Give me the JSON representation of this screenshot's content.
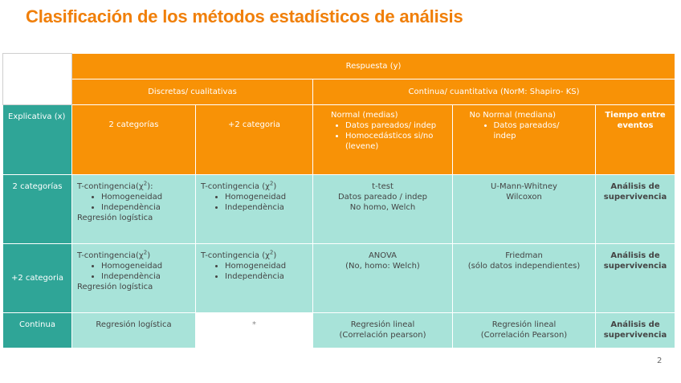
{
  "title": "Clasificación de los métodos estadísticos de análisis",
  "header": {
    "respuesta": "Respuesta (y)",
    "discretas": "Discretas/ cualitativas",
    "continua": "Continua/ cuantitativa  (NorM: Shapiro- KS)"
  },
  "subheader": {
    "explicativa": "Explicativa (x)",
    "cat2": "2 categorías",
    "cat_more": "+2 categoria",
    "normal_title": "Normal (medias)",
    "normal_items": [
      "Datos pareados/ indep",
      "Homocedásticos si/no (levene)"
    ],
    "nonormal_title": "No Normal (mediana)",
    "nonormal_items": [
      "Datos pareados/ indep"
    ],
    "tiempo": "Tiempo entre eventos"
  },
  "rows": {
    "r1": {
      "label": "2 categorías",
      "d1_title": "T-contingencia(χ",
      "d1_sup": "2",
      "d1_end": "):",
      "d1_items": [
        "Homogeneidad",
        "Independència"
      ],
      "d1_extra": "Regresión logística",
      "d2_title": "T-contingencia (χ",
      "d2_sup": "2",
      "d2_end": ")",
      "d2_items": [
        "Homogeneidad",
        "Independència"
      ],
      "normal_lines": [
        "t-test",
        "Datos pareado / indep",
        "No homo,  Welch"
      ],
      "nonormal_lines": [
        "U-Mann-Whitney",
        "Wilcoxon"
      ],
      "tiempo": "Análisis de supervivencia"
    },
    "r2": {
      "label": "+2 categoria",
      "d1_title": "T-contingencia(χ",
      "d1_sup": "2",
      "d1_end": ")",
      "d1_items": [
        "Homogeneidad",
        "Independència"
      ],
      "d1_extra": "Regresión logística",
      "d2_title": "T-contingencia (χ",
      "d2_sup": "2",
      "d2_end": ")",
      "d2_items": [
        "Homogeneidad",
        "Independència"
      ],
      "normal_lines": [
        "ANOVA",
        "(No, homo:  Welch)"
      ],
      "nonormal_lines": [
        "Friedman",
        "(sólo datos  independientes)"
      ],
      "tiempo": "Análisis de supervivencia"
    },
    "r3": {
      "label": "Continua",
      "d1": "Regresión logística",
      "d2": "*",
      "normal_lines": [
        "Regresión lineal",
        "(Correlación pearson)"
      ],
      "nonormal_lines": [
        "Regresión lineal",
        "(Correlación Pearson)"
      ],
      "tiempo": "Análisis de supervivencia"
    }
  },
  "page_number": "2",
  "colors": {
    "orange": "#f89206",
    "teal": "#2fa597",
    "mint": "#a8e3d9",
    "title": "#f07f09"
  }
}
